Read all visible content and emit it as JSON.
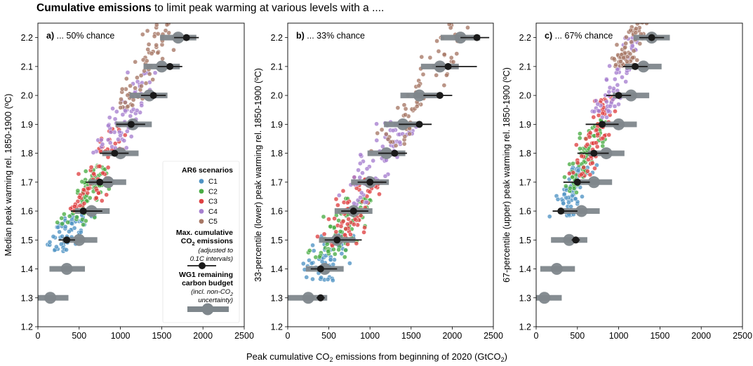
{
  "title": {
    "bold": "Cumulative emissions",
    "rest": " to limit peak warming at various levels with a ...."
  },
  "xlabel": {
    "pre": "Peak cumulative CO",
    "sub": "2",
    "post": " emissions from beginning of 2020 (GtCO",
    "sub2": "2",
    "end": ")"
  },
  "legend": {
    "title": "AR6 scenarios",
    "entries": [
      "C1",
      "C2",
      "C3",
      "C4",
      "C5"
    ],
    "max_line1": "Max. cumulative",
    "max_line2_pre": "CO",
    "max_line2_sub": "2",
    "max_line2_post": " emissions",
    "max_note1": "(adjusted to",
    "max_note2": "0.1C intervals)",
    "wg1_line1": "WG1 remaining",
    "wg1_line2": "carbon budget",
    "wg1_note1_pre": "(incl. non-CO",
    "wg1_note1_sub": "2",
    "wg1_note2": "uncertainty)"
  },
  "colors": {
    "C1": "#4f93c4",
    "C2": "#4aad45",
    "C3": "#df4143",
    "C4": "#a67fcf",
    "C5": "#a77765",
    "budget": "#7f878c",
    "max": "#1a1a1a"
  },
  "chart_data": [
    {
      "type": "scatter",
      "panel_label": "a)",
      "panel_title": " ... 50% chance",
      "ylabel": "Median peak warming rel. 1850-1900 (ºC)",
      "xlim": [
        0,
        2500
      ],
      "ylim": [
        1.2,
        2.25
      ],
      "xticks": [
        0,
        500,
        1000,
        1500,
        2000,
        2500
      ],
      "yticks": [
        1.2,
        1.3,
        1.4,
        1.5,
        1.6,
        1.7,
        1.8,
        1.9,
        2.0,
        2.1,
        2.2
      ],
      "scatter_fit": {
        "slope": 0.00063,
        "intercept": 1.28,
        "spread_x": 140,
        "bands": [
          {
            "name": "C1",
            "y": [
              1.46,
              1.6
            ]
          },
          {
            "name": "C2",
            "y": [
              1.55,
              1.76
            ]
          },
          {
            "name": "C3",
            "y": [
              1.6,
              1.9
            ]
          },
          {
            "name": "C4",
            "y": [
              1.8,
              2.08
            ]
          },
          {
            "name": "C5",
            "y": [
              1.95,
              2.27
            ]
          }
        ]
      },
      "max_emissions": [
        {
          "y": 1.5,
          "x": 350,
          "lo": 250,
          "hi": 450
        },
        {
          "y": 1.6,
          "x": 550,
          "lo": 400,
          "hi": 780
        },
        {
          "y": 1.7,
          "x": 750,
          "lo": 580,
          "hi": 900
        },
        {
          "y": 1.8,
          "x": 930,
          "lo": 750,
          "hi": 1100
        },
        {
          "y": 1.9,
          "x": 1130,
          "lo": 950,
          "hi": 1300
        },
        {
          "y": 2.0,
          "x": 1400,
          "lo": 1250,
          "hi": 1550
        },
        {
          "y": 2.1,
          "x": 1600,
          "lo": 1450,
          "hi": 1750
        },
        {
          "y": 2.2,
          "x": 1800,
          "lo": 1650,
          "hi": 1950
        }
      ],
      "wg1_budget": [
        {
          "y": 1.3,
          "x": 150,
          "lo": 0,
          "hi": 370
        },
        {
          "y": 1.4,
          "x": 350,
          "lo": 140,
          "hi": 570
        },
        {
          "y": 1.5,
          "x": 500,
          "lo": 300,
          "hi": 720
        },
        {
          "y": 1.6,
          "x": 650,
          "lo": 450,
          "hi": 870
        },
        {
          "y": 1.7,
          "x": 850,
          "lo": 620,
          "hi": 1070
        },
        {
          "y": 1.8,
          "x": 1000,
          "lo": 780,
          "hi": 1220
        },
        {
          "y": 1.9,
          "x": 1150,
          "lo": 940,
          "hi": 1380
        },
        {
          "y": 2.0,
          "x": 1350,
          "lo": 1110,
          "hi": 1570
        },
        {
          "y": 2.1,
          "x": 1500,
          "lo": 1280,
          "hi": 1720
        },
        {
          "y": 2.2,
          "x": 1700,
          "lo": 1480,
          "hi": 1920
        }
      ]
    },
    {
      "type": "scatter",
      "panel_label": "b)",
      "panel_title": " ... 33% chance",
      "ylabel": "33-percentile (lower) peak warming rel. 1850-1900 (ºC)",
      "xlim": [
        0,
        2500
      ],
      "ylim": [
        1.2,
        2.25
      ],
      "xticks": [
        0,
        500,
        1000,
        1500,
        2000,
        2500
      ],
      "yticks": [
        1.2,
        1.3,
        1.4,
        1.5,
        1.6,
        1.7,
        1.8,
        1.9,
        2.0,
        2.1,
        2.2
      ],
      "scatter_fit": {
        "slope": 0.0005,
        "intercept": 1.2,
        "spread_x": 180,
        "bands": [
          {
            "name": "C1",
            "y": [
              1.36,
              1.52
            ]
          },
          {
            "name": "C2",
            "y": [
              1.44,
              1.65
            ]
          },
          {
            "name": "C3",
            "y": [
              1.48,
              1.72
            ]
          },
          {
            "name": "C4",
            "y": [
              1.62,
              1.92
            ]
          },
          {
            "name": "C5",
            "y": [
              1.8,
              2.28
            ]
          }
        ]
      },
      "max_emissions": [
        {
          "y": 1.3,
          "x": 400,
          "lo": 350,
          "hi": 450
        },
        {
          "y": 1.4,
          "x": 400,
          "lo": 280,
          "hi": 600
        },
        {
          "y": 1.5,
          "x": 600,
          "lo": 450,
          "hi": 900
        },
        {
          "y": 1.6,
          "x": 800,
          "lo": 650,
          "hi": 980
        },
        {
          "y": 1.7,
          "x": 1000,
          "lo": 850,
          "hi": 1200
        },
        {
          "y": 1.8,
          "x": 1300,
          "lo": 1100,
          "hi": 1450
        },
        {
          "y": 1.9,
          "x": 1600,
          "lo": 1350,
          "hi": 1750
        },
        {
          "y": 2.0,
          "x": 1850,
          "lo": 1650,
          "hi": 2000
        },
        {
          "y": 2.1,
          "x": 1950,
          "lo": 1800,
          "hi": 2300
        },
        {
          "y": 2.2,
          "x": 2300,
          "lo": 2100,
          "hi": 2450
        }
      ],
      "wg1_budget": [
        {
          "y": 1.3,
          "x": 250,
          "lo": 0,
          "hi": 480
        },
        {
          "y": 1.4,
          "x": 450,
          "lo": 220,
          "hi": 680
        },
        {
          "y": 1.5,
          "x": 600,
          "lo": 380,
          "hi": 820
        },
        {
          "y": 1.6,
          "x": 800,
          "lo": 570,
          "hi": 1030
        },
        {
          "y": 1.7,
          "x": 1000,
          "lo": 770,
          "hi": 1230
        },
        {
          "y": 1.8,
          "x": 1200,
          "lo": 970,
          "hi": 1430
        },
        {
          "y": 1.9,
          "x": 1400,
          "lo": 1170,
          "hi": 1630
        },
        {
          "y": 2.0,
          "x": 1600,
          "lo": 1370,
          "hi": 1830
        },
        {
          "y": 2.1,
          "x": 1850,
          "lo": 1620,
          "hi": 2080
        },
        {
          "y": 2.2,
          "x": 2100,
          "lo": 1860,
          "hi": 2340
        }
      ]
    },
    {
      "type": "scatter",
      "panel_label": "c)",
      "panel_title": " ... 67% chance",
      "ylabel": "67-percentile (upper) peak warming rel. 1850-1900 (ºC)",
      "xlim": [
        0,
        2500
      ],
      "ylim": [
        1.2,
        2.25
      ],
      "xticks": [
        0,
        500,
        1000,
        1500,
        2000,
        2500
      ],
      "yticks": [
        1.2,
        1.3,
        1.4,
        1.5,
        1.6,
        1.7,
        1.8,
        1.9,
        2.0,
        2.1,
        2.2
      ],
      "scatter_fit": {
        "slope": 0.00072,
        "intercept": 1.35,
        "spread_x": 110,
        "bands": [
          {
            "name": "C1",
            "y": [
              1.58,
              1.76
            ]
          },
          {
            "name": "C2",
            "y": [
              1.66,
              1.92
            ]
          },
          {
            "name": "C3",
            "y": [
              1.72,
              2.0
            ]
          },
          {
            "name": "C4",
            "y": [
              1.92,
              2.2
            ]
          },
          {
            "name": "C5",
            "y": [
              2.1,
              2.27
            ]
          }
        ]
      },
      "max_emissions": [
        {
          "y": 1.5,
          "x": 480,
          "lo": 430,
          "hi": 530
        },
        {
          "y": 1.6,
          "x": 300,
          "lo": 200,
          "hi": 500
        },
        {
          "y": 1.7,
          "x": 500,
          "lo": 330,
          "hi": 650
        },
        {
          "y": 1.8,
          "x": 700,
          "lo": 500,
          "hi": 880
        },
        {
          "y": 1.9,
          "x": 800,
          "lo": 600,
          "hi": 1000
        },
        {
          "y": 2.0,
          "x": 1000,
          "lo": 850,
          "hi": 1150
        },
        {
          "y": 2.1,
          "x": 1200,
          "lo": 1050,
          "hi": 1350
        },
        {
          "y": 2.2,
          "x": 1400,
          "lo": 1250,
          "hi": 1550
        }
      ],
      "wg1_budget": [
        {
          "y": 1.3,
          "x": 100,
          "lo": 0,
          "hi": 310
        },
        {
          "y": 1.4,
          "x": 250,
          "lo": 50,
          "hi": 470
        },
        {
          "y": 1.5,
          "x": 400,
          "lo": 180,
          "hi": 620
        },
        {
          "y": 1.6,
          "x": 550,
          "lo": 330,
          "hi": 770
        },
        {
          "y": 1.7,
          "x": 700,
          "lo": 480,
          "hi": 920
        },
        {
          "y": 1.8,
          "x": 850,
          "lo": 630,
          "hi": 1070
        },
        {
          "y": 1.9,
          "x": 1000,
          "lo": 780,
          "hi": 1220
        },
        {
          "y": 2.0,
          "x": 1150,
          "lo": 930,
          "hi": 1370
        },
        {
          "y": 2.1,
          "x": 1300,
          "lo": 1080,
          "hi": 1520
        },
        {
          "y": 2.2,
          "x": 1400,
          "lo": 1180,
          "hi": 1620
        }
      ]
    }
  ]
}
